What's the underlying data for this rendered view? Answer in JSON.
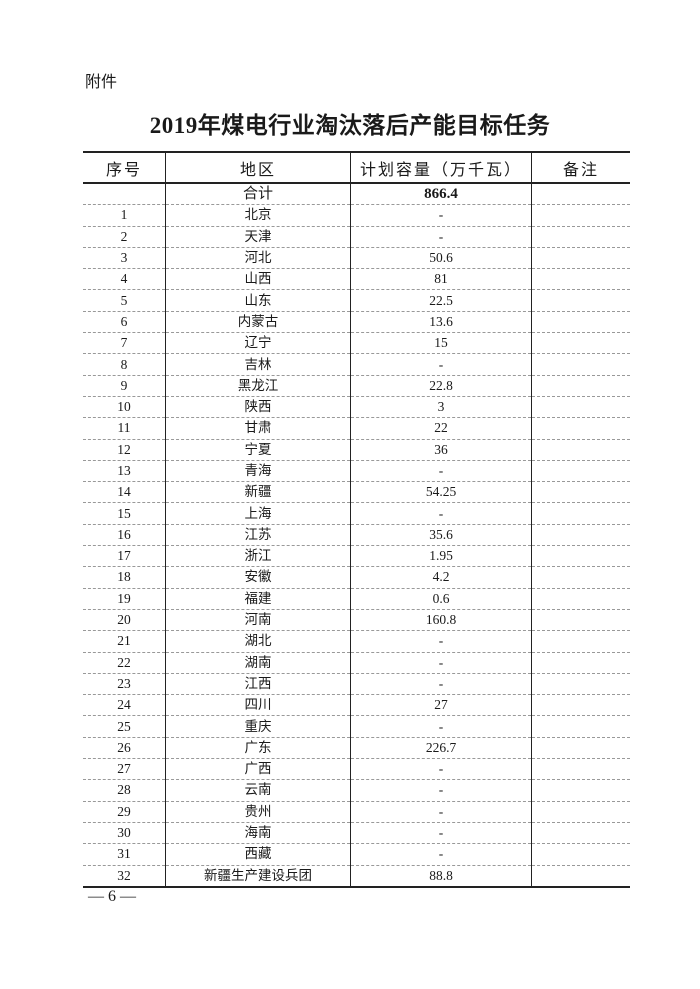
{
  "attachment_label": "附件",
  "title": "2019年煤电行业淘汰落后产能目标任务",
  "table": {
    "headers": [
      "序号",
      "地区",
      "计划容量（万千瓦）",
      "备注"
    ],
    "total": {
      "label": "合计",
      "value": "866.4"
    },
    "rows": [
      [
        "1",
        "北京",
        "-"
      ],
      [
        "2",
        "天津",
        "-"
      ],
      [
        "3",
        "河北",
        "50.6"
      ],
      [
        "4",
        "山西",
        "81"
      ],
      [
        "5",
        "山东",
        "22.5"
      ],
      [
        "6",
        "内蒙古",
        "13.6"
      ],
      [
        "7",
        "辽宁",
        "15"
      ],
      [
        "8",
        "吉林",
        "-"
      ],
      [
        "9",
        "黑龙江",
        "22.8"
      ],
      [
        "10",
        "陕西",
        "3"
      ],
      [
        "11",
        "甘肃",
        "22"
      ],
      [
        "12",
        "宁夏",
        "36"
      ],
      [
        "13",
        "青海",
        "-"
      ],
      [
        "14",
        "新疆",
        "54.25"
      ],
      [
        "15",
        "上海",
        "-"
      ],
      [
        "16",
        "江苏",
        "35.6"
      ],
      [
        "17",
        "浙江",
        "1.95"
      ],
      [
        "18",
        "安徽",
        "4.2"
      ],
      [
        "19",
        "福建",
        "0.6"
      ],
      [
        "20",
        "河南",
        "160.8"
      ],
      [
        "21",
        "湖北",
        "-"
      ],
      [
        "22",
        "湖南",
        "-"
      ],
      [
        "23",
        "江西",
        "-"
      ],
      [
        "24",
        "四川",
        "27"
      ],
      [
        "25",
        "重庆",
        "-"
      ],
      [
        "26",
        "广东",
        "226.7"
      ],
      [
        "27",
        "广西",
        "-"
      ],
      [
        "28",
        "云南",
        "-"
      ],
      [
        "29",
        "贵州",
        "-"
      ],
      [
        "30",
        "海南",
        "-"
      ],
      [
        "31",
        "西藏",
        "-"
      ],
      [
        "32",
        "新疆生产建设兵团",
        "88.8"
      ]
    ]
  },
  "page_number": "— 6 —"
}
